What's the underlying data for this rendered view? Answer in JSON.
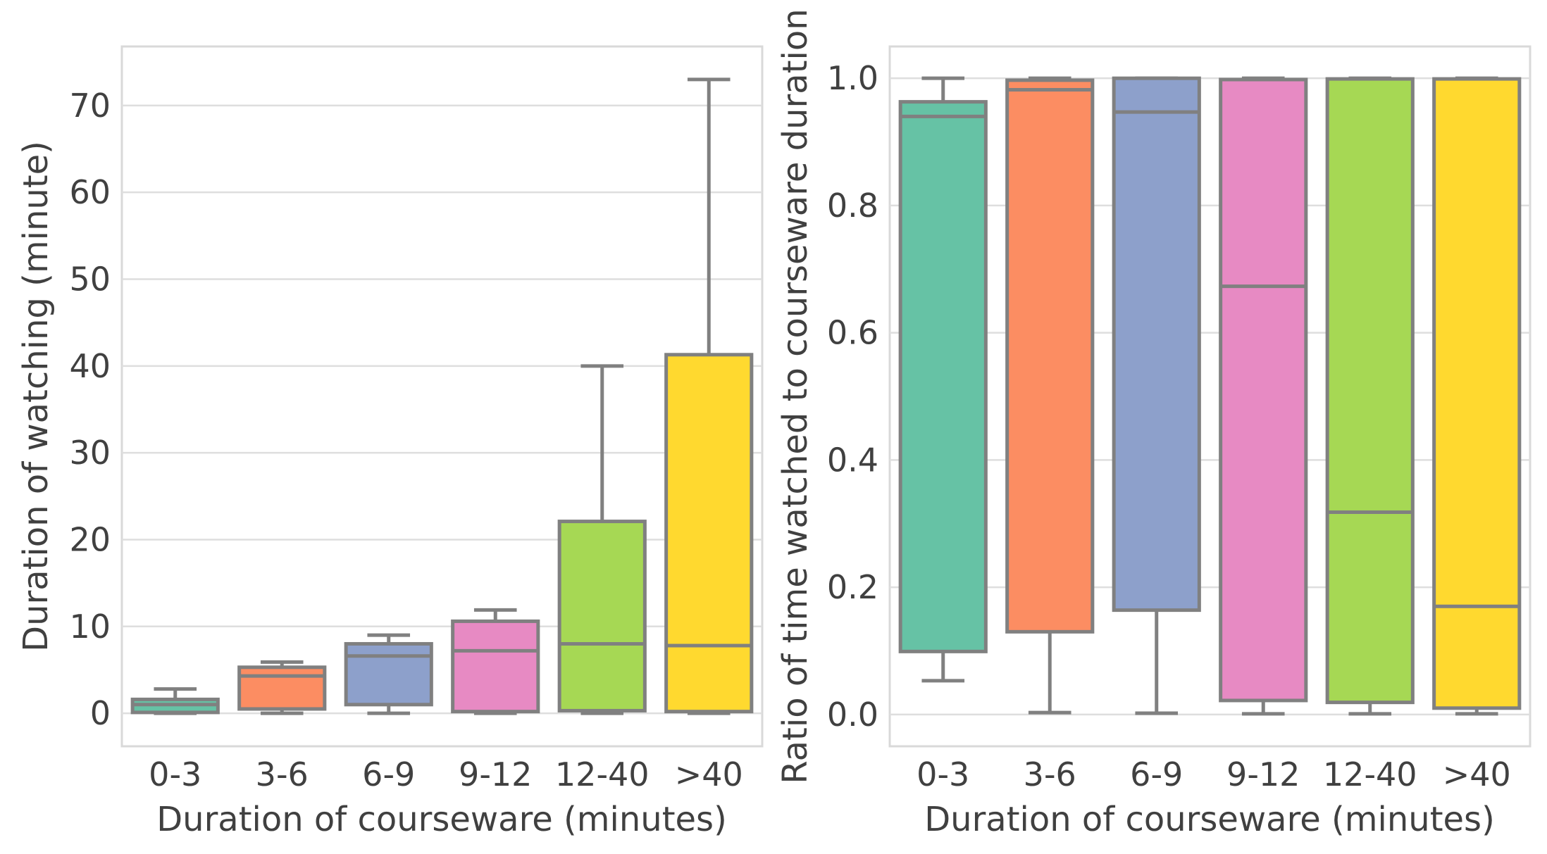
{
  "chart_data": [
    {
      "type": "box",
      "xlabel": "Duration of courseware (minutes)",
      "ylabel": "Duration of watching (minute)",
      "categories": [
        "0-3",
        "3-6",
        "6-9",
        "9-12",
        "12-40",
        ">40"
      ],
      "colors": [
        "#66c2a5",
        "#fc8d62",
        "#8da0cb",
        "#e78ac3",
        "#a6d854",
        "#ffd92f"
      ],
      "ylim": [
        -3.8,
        76.8
      ],
      "yticks": [
        0,
        10,
        20,
        30,
        40,
        50,
        60,
        70
      ],
      "ytick_labels": [
        "0",
        "10",
        "20",
        "30",
        "40",
        "50",
        "60",
        "70"
      ],
      "boxes": [
        {
          "whislo": 0.0,
          "q1": 0.1,
          "med": 1.0,
          "q3": 1.6,
          "whishi": 2.8
        },
        {
          "whislo": 0.0,
          "q1": 0.5,
          "med": 4.3,
          "q3": 5.3,
          "whishi": 5.9
        },
        {
          "whislo": 0.0,
          "q1": 1.0,
          "med": 6.6,
          "q3": 8.0,
          "whishi": 9.0
        },
        {
          "whislo": 0.0,
          "q1": 0.2,
          "med": 7.2,
          "q3": 10.6,
          "whishi": 11.9
        },
        {
          "whislo": 0.0,
          "q1": 0.3,
          "med": 8.0,
          "q3": 22.1,
          "whishi": 40.0
        },
        {
          "whislo": 0.0,
          "q1": 0.2,
          "med": 7.8,
          "q3": 41.3,
          "whishi": 73.0
        }
      ]
    },
    {
      "type": "box",
      "xlabel": "Duration of courseware (minutes)",
      "ylabel": "Ratio of time watched to courseware duration",
      "categories": [
        "0-3",
        "3-6",
        "6-9",
        "9-12",
        "12-40",
        ">40"
      ],
      "colors": [
        "#66c2a5",
        "#fc8d62",
        "#8da0cb",
        "#e78ac3",
        "#a6d854",
        "#ffd92f"
      ],
      "ylim": [
        -0.05,
        1.05
      ],
      "yticks": [
        0.0,
        0.2,
        0.4,
        0.6,
        0.8,
        1.0
      ],
      "ytick_labels": [
        "0.0",
        "0.2",
        "0.4",
        "0.6",
        "0.8",
        "1.0"
      ],
      "boxes": [
        {
          "whislo": 0.053,
          "q1": 0.099,
          "med": 0.94,
          "q3": 0.963,
          "whishi": 1.0
        },
        {
          "whislo": 0.003,
          "q1": 0.13,
          "med": 0.982,
          "q3": 0.997,
          "whishi": 1.0
        },
        {
          "whislo": 0.002,
          "q1": 0.164,
          "med": 0.947,
          "q3": 1.0,
          "whishi": 1.0
        },
        {
          "whislo": 0.001,
          "q1": 0.022,
          "med": 0.673,
          "q3": 0.998,
          "whishi": 1.0
        },
        {
          "whislo": 0.001,
          "q1": 0.019,
          "med": 0.318,
          "q3": 0.999,
          "whishi": 1.0
        },
        {
          "whislo": 0.001,
          "q1": 0.01,
          "med": 0.17,
          "q3": 0.999,
          "whishi": 1.0
        }
      ]
    }
  ]
}
